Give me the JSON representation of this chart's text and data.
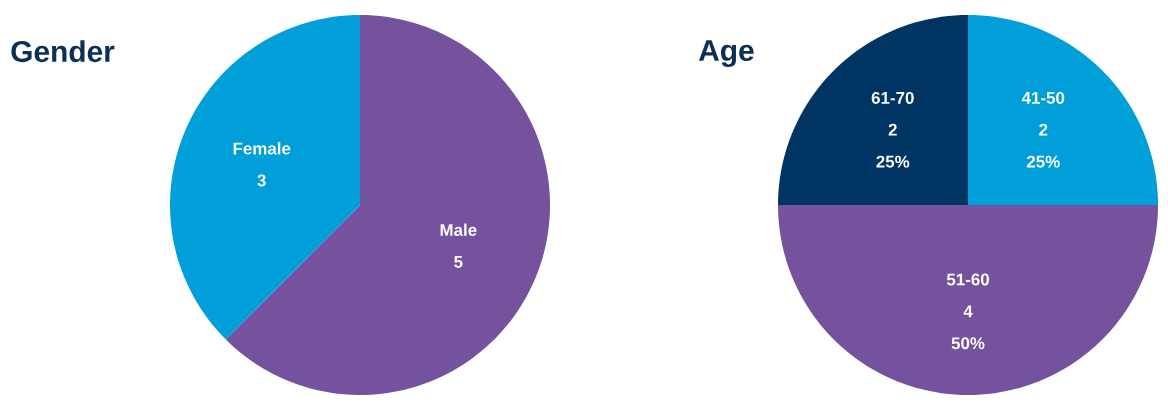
{
  "chart_data": [
    {
      "type": "pie",
      "title": "Gender",
      "categories": [
        "Male",
        "Female"
      ],
      "values": [
        5,
        3
      ],
      "colors": [
        "#74529e",
        "#009fda"
      ],
      "data_labels": true
    },
    {
      "type": "pie",
      "title": "Age",
      "categories": [
        "41-50",
        "51-60",
        "61-70"
      ],
      "values": [
        25,
        50,
        25
      ],
      "colors": [
        "#009fda",
        "#74529e",
        "#003462"
      ],
      "value_labels": [
        "25%",
        "50%",
        "25%"
      ],
      "annotations": [
        "2",
        "4",
        "2"
      ]
    }
  ]
}
